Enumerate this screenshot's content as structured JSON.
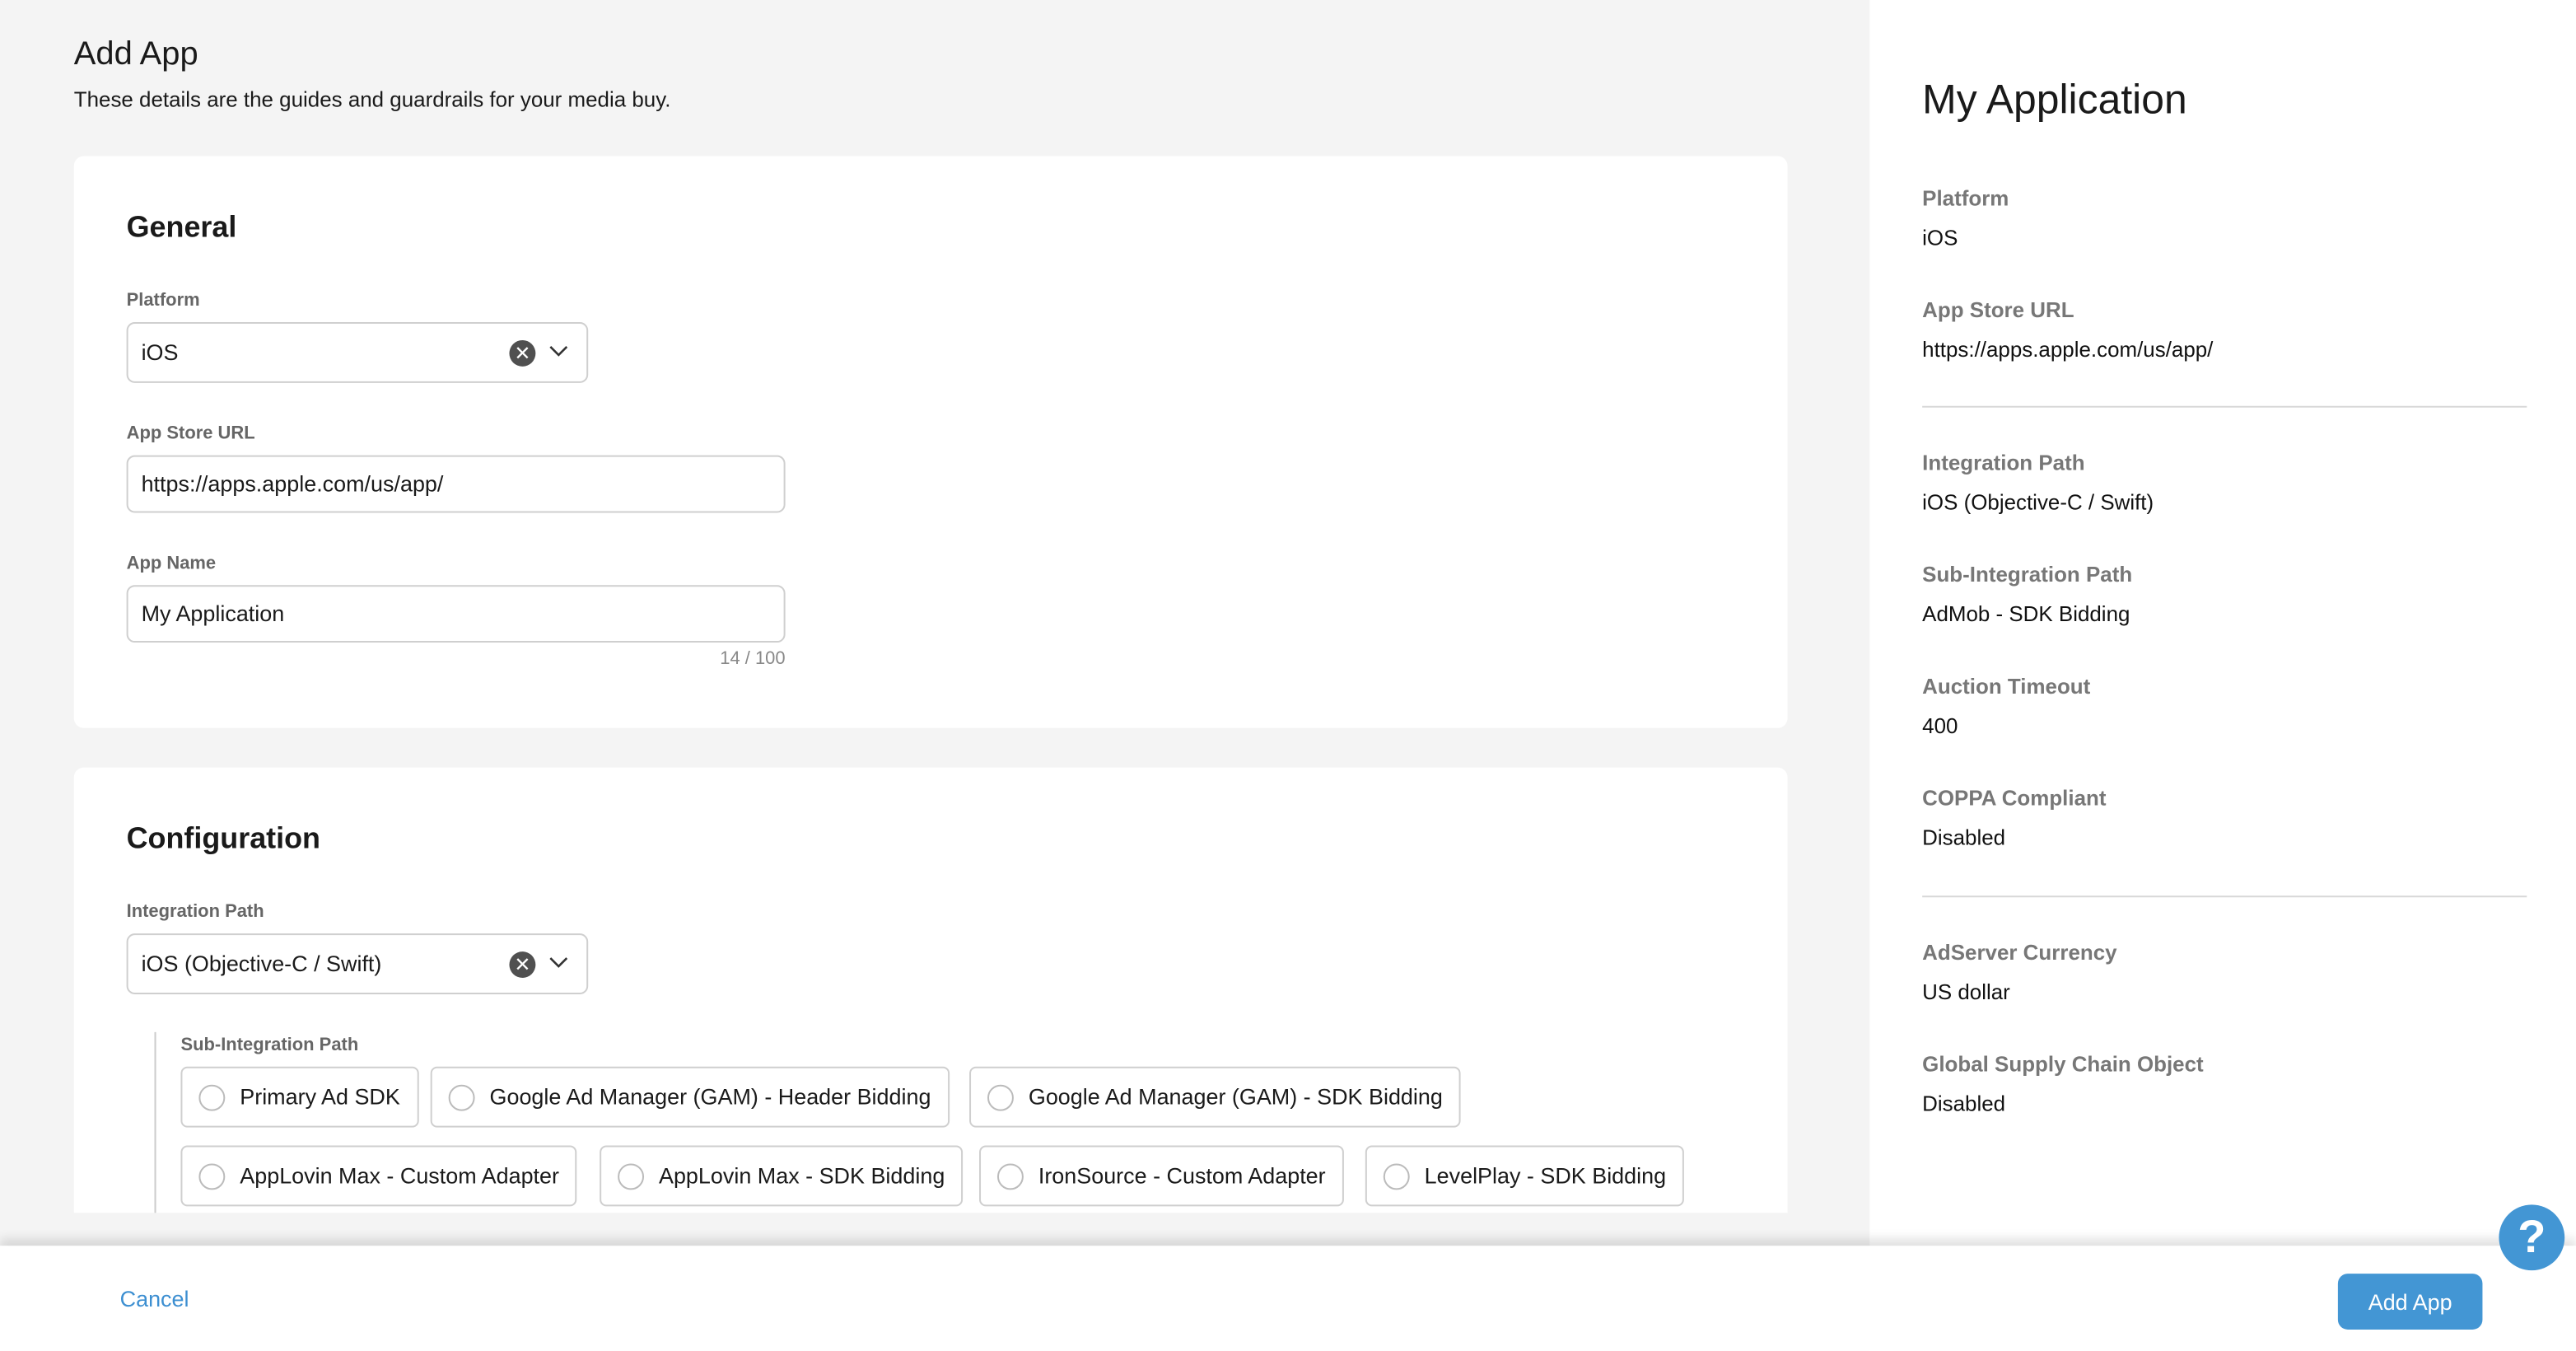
{
  "header": {
    "title": "Add App",
    "subtitle": "These details are the guides and guardrails for your media buy."
  },
  "general": {
    "title": "General",
    "platform": {
      "label": "Platform",
      "value": "iOS"
    },
    "app_store_url": {
      "label": "App Store URL",
      "value": "https://apps.apple.com/us/app/"
    },
    "app_name": {
      "label": "App Name",
      "value": "My Application",
      "counter": "14 / 100"
    }
  },
  "configuration": {
    "title": "Configuration",
    "integration_path": {
      "label": "Integration Path",
      "value": "iOS (Objective-C / Swift)"
    },
    "sub_integration": {
      "label": "Sub-Integration Path",
      "options": [
        "Primary Ad SDK",
        "Google Ad Manager (GAM) - Header Bidding",
        "Google Ad Manager (GAM) - SDK Bidding",
        "AppLovin Max - Custom Adapter",
        "AppLovin Max - SDK Bidding",
        "IronSource - Custom Adapter",
        "LevelPlay - SDK Bidding"
      ]
    }
  },
  "summary": {
    "title": "My Application",
    "items": [
      {
        "label": "Platform",
        "value": "iOS"
      },
      {
        "label": "App Store URL",
        "value": "https://apps.apple.com/us/app/"
      },
      {
        "label": "Integration Path",
        "value": "iOS (Objective-C / Swift)"
      },
      {
        "label": "Sub-Integration Path",
        "value": "AdMob - SDK Bidding"
      },
      {
        "label": "Auction Timeout",
        "value": "400"
      },
      {
        "label": "COPPA Compliant",
        "value": "Disabled"
      },
      {
        "label": "AdServer Currency",
        "value": "US dollar"
      },
      {
        "label": "Global Supply Chain Object",
        "value": "Disabled"
      }
    ]
  },
  "footer": {
    "cancel": "Cancel",
    "submit": "Add App"
  },
  "help": {
    "icon": "question-icon",
    "glyph": "?"
  },
  "colors": {
    "accent": "#4396d4",
    "link": "#3d8fd1"
  }
}
